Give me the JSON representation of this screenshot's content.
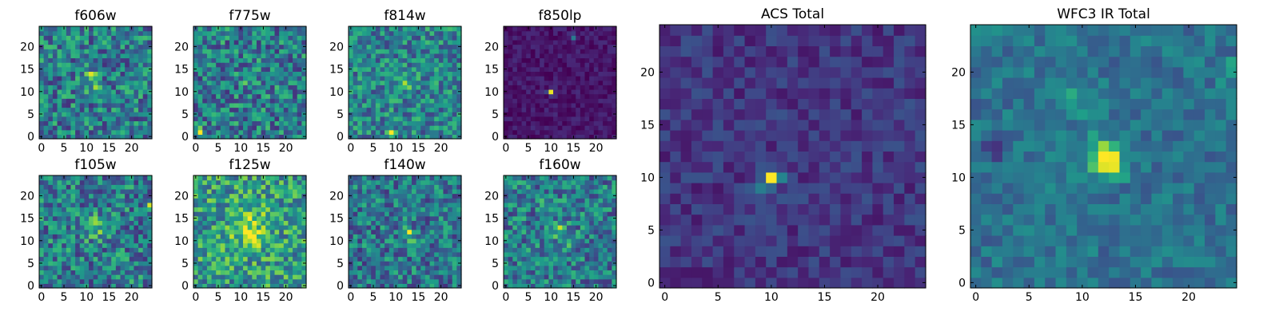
{
  "figure": {
    "colormap": "viridis",
    "colormap_stops": [
      "#440154",
      "#482878",
      "#3e4989",
      "#31688e",
      "#26828e",
      "#1f9e89",
      "#35b779",
      "#6ece58",
      "#b5de2b",
      "#fde725"
    ]
  },
  "chart_data": [
    {
      "type": "heatmap",
      "title": "f606w",
      "grid_size": 25,
      "xlim": [
        -0.5,
        24.5
      ],
      "ylim": [
        -0.5,
        24.5
      ],
      "xticks": [
        0,
        5,
        10,
        15,
        20
      ],
      "yticks": [
        0,
        5,
        10,
        15,
        20
      ],
      "background_level": 0.42,
      "noise_amplitude": 0.28,
      "seed": 11,
      "features": [
        {
          "x": 11,
          "y": 14,
          "amplitude": 0.5,
          "sigma": 0.6
        },
        {
          "x": 12,
          "y": 11,
          "amplitude": 0.2,
          "sigma": 1.2
        }
      ]
    },
    {
      "type": "heatmap",
      "title": "f775w",
      "grid_size": 25,
      "xlim": [
        -0.5,
        24.5
      ],
      "ylim": [
        -0.5,
        24.5
      ],
      "xticks": [
        0,
        5,
        10,
        15,
        20
      ],
      "yticks": [
        0,
        5,
        10,
        15,
        20
      ],
      "background_level": 0.42,
      "noise_amplitude": 0.28,
      "seed": 23,
      "features": [
        {
          "x": 1,
          "y": 1,
          "amplitude": 0.5,
          "sigma": 0.6
        },
        {
          "x": 12,
          "y": 13,
          "amplitude": 0.15,
          "sigma": 1.5
        }
      ]
    },
    {
      "type": "heatmap",
      "title": "f814w",
      "grid_size": 25,
      "xlim": [
        -0.5,
        24.5
      ],
      "ylim": [
        -0.5,
        24.5
      ],
      "xticks": [
        0,
        5,
        10,
        15,
        20
      ],
      "yticks": [
        0,
        5,
        10,
        15,
        20
      ],
      "background_level": 0.45,
      "noise_amplitude": 0.25,
      "seed": 37,
      "features": [
        {
          "x": 9,
          "y": 1,
          "amplitude": 0.45,
          "sigma": 0.6
        },
        {
          "x": 12,
          "y": 12,
          "amplitude": 0.2,
          "sigma": 1.5
        }
      ]
    },
    {
      "type": "heatmap",
      "title": "f850lp",
      "grid_size": 25,
      "xlim": [
        -0.5,
        24.5
      ],
      "ylim": [
        -0.5,
        24.5
      ],
      "xticks": [
        0,
        5,
        10,
        15,
        20
      ],
      "yticks": [
        0,
        5,
        10,
        15,
        20
      ],
      "background_level": 0.06,
      "noise_amplitude": 0.07,
      "seed": 41,
      "features": [
        {
          "x": 10,
          "y": 10,
          "amplitude": 0.94,
          "sigma": 0.45
        },
        {
          "x": 15,
          "y": 22,
          "amplitude": 0.3,
          "sigma": 0.6
        }
      ]
    },
    {
      "type": "heatmap",
      "title": "f105w",
      "grid_size": 25,
      "xlim": [
        -0.5,
        24.5
      ],
      "ylim": [
        -0.5,
        24.5
      ],
      "xticks": [
        0,
        5,
        10,
        15,
        20
      ],
      "yticks": [
        0,
        5,
        10,
        15,
        20
      ],
      "background_level": 0.42,
      "noise_amplitude": 0.28,
      "seed": 53,
      "features": [
        {
          "x": 20,
          "y": 1,
          "amplitude": 0.5,
          "sigma": 0.6
        },
        {
          "x": 24,
          "y": 18,
          "amplitude": 0.4,
          "sigma": 0.6
        },
        {
          "x": 12,
          "y": 13,
          "amplitude": 0.25,
          "sigma": 1.8
        }
      ]
    },
    {
      "type": "heatmap",
      "title": "f125w",
      "grid_size": 25,
      "xlim": [
        -0.5,
        24.5
      ],
      "ylim": [
        -0.5,
        24.5
      ],
      "xticks": [
        0,
        5,
        10,
        15,
        20
      ],
      "yticks": [
        0,
        5,
        10,
        15,
        20
      ],
      "background_level": 0.55,
      "noise_amplitude": 0.28,
      "seed": 67,
      "features": [
        {
          "x": 12,
          "y": 13,
          "amplitude": 0.3,
          "sigma": 3.0
        },
        {
          "x": 12,
          "y": 10,
          "amplitude": 0.2,
          "sigma": 1.0
        }
      ]
    },
    {
      "type": "heatmap",
      "title": "f140w",
      "grid_size": 25,
      "xlim": [
        -0.5,
        24.5
      ],
      "ylim": [
        -0.5,
        24.5
      ],
      "xticks": [
        0,
        5,
        10,
        15,
        20
      ],
      "yticks": [
        0,
        5,
        10,
        15,
        20
      ],
      "background_level": 0.4,
      "noise_amplitude": 0.26,
      "seed": 79,
      "features": [
        {
          "x": 13,
          "y": 12,
          "amplitude": 0.55,
          "sigma": 0.6
        },
        {
          "x": 13,
          "y": 10,
          "amplitude": 0.15,
          "sigma": 1.5
        }
      ]
    },
    {
      "type": "heatmap",
      "title": "f160w",
      "grid_size": 25,
      "xlim": [
        -0.5,
        24.5
      ],
      "ylim": [
        -0.5,
        24.5
      ],
      "xticks": [
        0,
        5,
        10,
        15,
        20
      ],
      "yticks": [
        0,
        5,
        10,
        15,
        20
      ],
      "background_level": 0.42,
      "noise_amplitude": 0.26,
      "seed": 83,
      "features": [
        {
          "x": 12,
          "y": 12,
          "amplitude": 0.35,
          "sigma": 1.3
        },
        {
          "x": 10,
          "y": 18,
          "amplitude": 0.2,
          "sigma": 1.2
        },
        {
          "x": 14,
          "y": 9,
          "amplitude": 0.2,
          "sigma": 1.0
        }
      ]
    },
    {
      "type": "heatmap",
      "title": "ACS Total",
      "grid_size": 25,
      "xlim": [
        -0.5,
        24.5
      ],
      "ylim": [
        -0.5,
        24.5
      ],
      "xticks": [
        0,
        5,
        10,
        15,
        20
      ],
      "yticks": [
        0,
        5,
        10,
        15,
        20
      ],
      "background_level": 0.16,
      "noise_amplitude": 0.1,
      "seed": 97,
      "features": [
        {
          "x": 10,
          "y": 10,
          "amplitude": 0.84,
          "sigma": 0.45
        },
        {
          "x": 9,
          "y": 9,
          "amplitude": 0.25,
          "sigma": 0.7
        },
        {
          "x": 11,
          "y": 10,
          "amplitude": 0.2,
          "sigma": 0.6
        }
      ]
    },
    {
      "type": "heatmap",
      "title": "WFC3 IR Total",
      "grid_size": 25,
      "xlim": [
        -0.5,
        24.5
      ],
      "ylim": [
        -0.5,
        24.5
      ],
      "xticks": [
        0,
        5,
        10,
        15,
        20
      ],
      "yticks": [
        0,
        5,
        10,
        15,
        20
      ],
      "background_level": 0.38,
      "noise_amplitude": 0.12,
      "seed": 101,
      "features": [
        {
          "x": 12,
          "y": 12,
          "amplitude": 0.55,
          "sigma": 1.2
        },
        {
          "x": 13,
          "y": 11,
          "amplitude": 0.3,
          "sigma": 0.8
        },
        {
          "x": 9,
          "y": 17,
          "amplitude": 0.2,
          "sigma": 1.0
        },
        {
          "x": 1,
          "y": 24,
          "amplitude": 0.2,
          "sigma": 0.8
        },
        {
          "x": 24,
          "y": 20,
          "amplitude": 0.2,
          "sigma": 0.8
        },
        {
          "x": 2,
          "y": 13,
          "amplitude": -0.3,
          "sigma": 0.8
        }
      ]
    }
  ]
}
